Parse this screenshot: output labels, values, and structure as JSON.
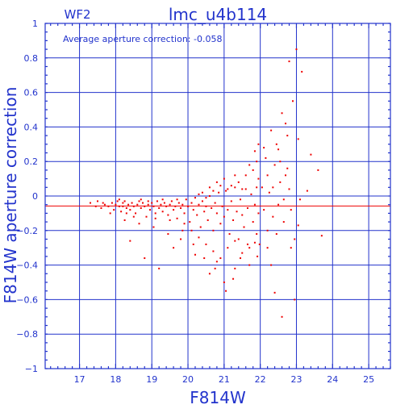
{
  "chart_data": {
    "type": "scatter",
    "panel_label": "WF2",
    "title": "lmc_u4b114",
    "annotation": "Average aperture correction:  -0.058",
    "xlabel": "F814W",
    "ylabel": "F814W aperture correction",
    "xlim": [
      16.05,
      25.6
    ],
    "ylim": [
      -1,
      1
    ],
    "x_ticks": [
      17,
      18,
      19,
      20,
      21,
      22,
      23,
      24,
      25
    ],
    "y_ticks": [
      1,
      0.8,
      0.6,
      0.4,
      0.2,
      0,
      -0.2,
      -0.4,
      -0.6,
      -0.8,
      -1
    ],
    "y_tick_labels": [
      "1",
      "0.8",
      "0.6",
      "0.4",
      "0.2",
      "0",
      "−0.2",
      "−0.4",
      "−0.6",
      "−0.8",
      "−1"
    ],
    "grid": true,
    "reference_lines": [
      {
        "axis": "y",
        "value": -0.058,
        "color": "#ee0000"
      }
    ],
    "marker_color": "#ee0000",
    "series": [
      {
        "points": [
          [
            17.3,
            -0.04
          ],
          [
            17.5,
            -0.03
          ],
          [
            17.6,
            -0.07
          ],
          [
            17.7,
            -0.05
          ],
          [
            17.8,
            -0.06
          ],
          [
            17.9,
            -0.04
          ],
          [
            17.95,
            -0.08
          ],
          [
            18.0,
            -0.05
          ],
          [
            18.05,
            -0.03
          ],
          [
            18.1,
            -0.06
          ],
          [
            18.15,
            -0.09
          ],
          [
            18.2,
            -0.04
          ],
          [
            18.2,
            -0.06
          ],
          [
            18.25,
            -0.03
          ],
          [
            18.3,
            -0.07
          ],
          [
            18.35,
            -0.05
          ],
          [
            18.4,
            -0.08
          ],
          [
            18.45,
            -0.04
          ],
          [
            18.5,
            -0.06
          ],
          [
            18.55,
            -0.1
          ],
          [
            18.6,
            -0.05
          ],
          [
            18.65,
            -0.03
          ],
          [
            18.7,
            -0.07
          ],
          [
            18.75,
            -0.04
          ],
          [
            18.8,
            -0.06
          ],
          [
            18.85,
            -0.12
          ],
          [
            18.9,
            -0.05
          ],
          [
            18.95,
            -0.08
          ],
          [
            19.0,
            -0.04
          ],
          [
            19.05,
            -0.06
          ],
          [
            19.1,
            -0.1
          ],
          [
            19.15,
            -0.03
          ],
          [
            19.2,
            -0.07
          ],
          [
            19.25,
            -0.05
          ],
          [
            19.3,
            -0.09
          ],
          [
            19.35,
            -0.04
          ],
          [
            19.4,
            -0.06
          ],
          [
            19.45,
            -0.11
          ],
          [
            19.5,
            -0.05
          ],
          [
            19.55,
            -0.03
          ],
          [
            19.6,
            -0.08
          ],
          [
            19.65,
            -0.06
          ],
          [
            19.7,
            -0.13
          ],
          [
            19.75,
            -0.04
          ],
          [
            19.8,
            -0.07
          ],
          [
            19.85,
            -0.05
          ],
          [
            19.9,
            -0.1
          ],
          [
            19.95,
            -0.02
          ],
          [
            20.0,
            -0.06
          ],
          [
            20.05,
            -0.15
          ],
          [
            20.1,
            -0.04
          ],
          [
            20.15,
            -0.08
          ],
          [
            20.2,
            -0.01
          ],
          [
            20.25,
            -0.11
          ],
          [
            20.3,
            -0.05
          ],
          [
            20.35,
            -0.18
          ],
          [
            20.4,
            -0.03
          ],
          [
            20.45,
            -0.09
          ],
          [
            20.5,
            -0.06
          ],
          [
            20.55,
            -0.14
          ],
          [
            20.6,
            0.0
          ],
          [
            20.65,
            -0.07
          ],
          [
            20.7,
            -0.2
          ],
          [
            20.75,
            -0.04
          ],
          [
            20.8,
            -0.1
          ],
          [
            20.85,
            0.02
          ],
          [
            20.9,
            -0.16
          ],
          [
            20.95,
            -0.06
          ],
          [
            21.0,
            -0.12
          ],
          [
            21.05,
            0.03
          ],
          [
            21.1,
            -0.08
          ],
          [
            21.15,
            -0.22
          ],
          [
            21.2,
            -0.03
          ],
          [
            21.25,
            -0.14
          ],
          [
            21.3,
            0.05
          ],
          [
            21.35,
            -0.09
          ],
          [
            21.4,
            -0.25
          ],
          [
            21.45,
            -0.02
          ],
          [
            21.5,
            -0.11
          ],
          [
            21.55,
            -0.18
          ],
          [
            21.6,
            0.04
          ],
          [
            21.65,
            -0.07
          ],
          [
            21.7,
            -0.3
          ],
          [
            21.75,
            0.01
          ],
          [
            21.8,
            -0.15
          ],
          [
            21.85,
            -0.05
          ],
          [
            21.9,
            -0.22
          ],
          [
            21.95,
            0.1
          ],
          [
            18.1,
            -0.02
          ],
          [
            18.3,
            -0.1
          ],
          [
            18.5,
            -0.12
          ],
          [
            18.7,
            -0.02
          ],
          [
            18.9,
            -0.03
          ],
          [
            19.1,
            -0.13
          ],
          [
            19.3,
            -0.02
          ],
          [
            19.5,
            -0.14
          ],
          [
            19.7,
            -0.02
          ],
          [
            19.9,
            -0.16
          ],
          [
            20.1,
            -0.2
          ],
          [
            20.3,
            -0.24
          ],
          [
            20.5,
            -0.28
          ],
          [
            20.7,
            -0.32
          ],
          [
            20.9,
            -0.36
          ],
          [
            21.1,
            -0.3
          ],
          [
            21.3,
            -0.26
          ],
          [
            21.5,
            -0.33
          ],
          [
            21.7,
            -0.4
          ],
          [
            20.6,
            -0.45
          ],
          [
            21.0,
            -0.5
          ],
          [
            21.3,
            -0.42
          ],
          [
            20.8,
            -0.38
          ],
          [
            20.2,
            -0.34
          ],
          [
            19.6,
            -0.3
          ],
          [
            19.2,
            -0.42
          ],
          [
            18.8,
            -0.36
          ],
          [
            18.4,
            -0.26
          ],
          [
            19.8,
            -0.25
          ],
          [
            20.4,
            0.02
          ],
          [
            20.6,
            0.05
          ],
          [
            20.8,
            0.08
          ],
          [
            21.0,
            0.1
          ],
          [
            21.2,
            0.06
          ],
          [
            21.4,
            0.08
          ],
          [
            21.6,
            0.12
          ],
          [
            21.8,
            0.15
          ],
          [
            21.9,
            0.2
          ],
          [
            21.85,
            0.26
          ],
          [
            21.95,
            0.3
          ],
          [
            21.7,
            0.18
          ],
          [
            21.5,
            0.04
          ],
          [
            21.3,
            0.12
          ],
          [
            21.1,
            0.04
          ],
          [
            20.9,
            0.06
          ],
          [
            20.7,
            0.03
          ],
          [
            20.5,
            -0.01
          ],
          [
            20.3,
            0.01
          ],
          [
            21.9,
            0.05
          ],
          [
            21.95,
            -0.1
          ],
          [
            21.98,
            -0.28
          ],
          [
            21.92,
            -0.35
          ],
          [
            22.05,
            0.05
          ],
          [
            22.1,
            -0.08
          ],
          [
            22.15,
            0.22
          ],
          [
            22.2,
            -0.2
          ],
          [
            22.25,
            0.02
          ],
          [
            22.3,
            0.38
          ],
          [
            22.35,
            -0.12
          ],
          [
            22.4,
            0.18
          ],
          [
            22.45,
            0.3
          ],
          [
            22.5,
            -0.05
          ],
          [
            22.55,
            0.08
          ],
          [
            22.6,
            0.48
          ],
          [
            22.65,
            -0.15
          ],
          [
            22.7,
            0.12
          ],
          [
            22.75,
            0.35
          ],
          [
            22.8,
            0.04
          ],
          [
            22.85,
            -0.3
          ],
          [
            22.9,
            0.55
          ],
          [
            22.95,
            -0.6
          ],
          [
            23.0,
            0.85
          ],
          [
            23.05,
            0.33
          ],
          [
            23.1,
            -0.02
          ],
          [
            23.15,
            0.72
          ],
          [
            23.3,
            0.03
          ],
          [
            23.4,
            0.24
          ],
          [
            23.6,
            0.15
          ],
          [
            23.7,
            -0.23
          ],
          [
            22.4,
            -0.56
          ],
          [
            22.7,
            0.42
          ],
          [
            22.8,
            0.78
          ],
          [
            22.6,
            -0.7
          ],
          [
            22.5,
            0.27
          ],
          [
            22.3,
            -0.4
          ],
          [
            22.2,
            0.12
          ],
          [
            22.1,
            0.28
          ],
          [
            22.85,
            -0.08
          ],
          [
            22.95,
            -0.25
          ],
          [
            23.05,
            -0.17
          ],
          [
            22.35,
            0.05
          ],
          [
            22.45,
            -0.22
          ],
          [
            22.55,
            0.2
          ],
          [
            22.65,
            -0.02
          ],
          [
            22.75,
            0.16
          ],
          [
            22.2,
            -0.3
          ],
          [
            21.05,
            -0.55
          ],
          [
            21.25,
            -0.48
          ],
          [
            20.75,
            -0.42
          ],
          [
            20.45,
            -0.36
          ],
          [
            21.45,
            -0.36
          ],
          [
            21.65,
            -0.28
          ],
          [
            21.85,
            -0.27
          ],
          [
            20.15,
            -0.28
          ],
          [
            19.85,
            -0.2
          ],
          [
            19.45,
            -0.22
          ],
          [
            19.05,
            -0.18
          ],
          [
            18.65,
            -0.16
          ],
          [
            18.25,
            -0.14
          ],
          [
            17.85,
            -0.1
          ],
          [
            17.65,
            -0.04
          ],
          [
            17.45,
            -0.06
          ]
        ]
      }
    ]
  }
}
